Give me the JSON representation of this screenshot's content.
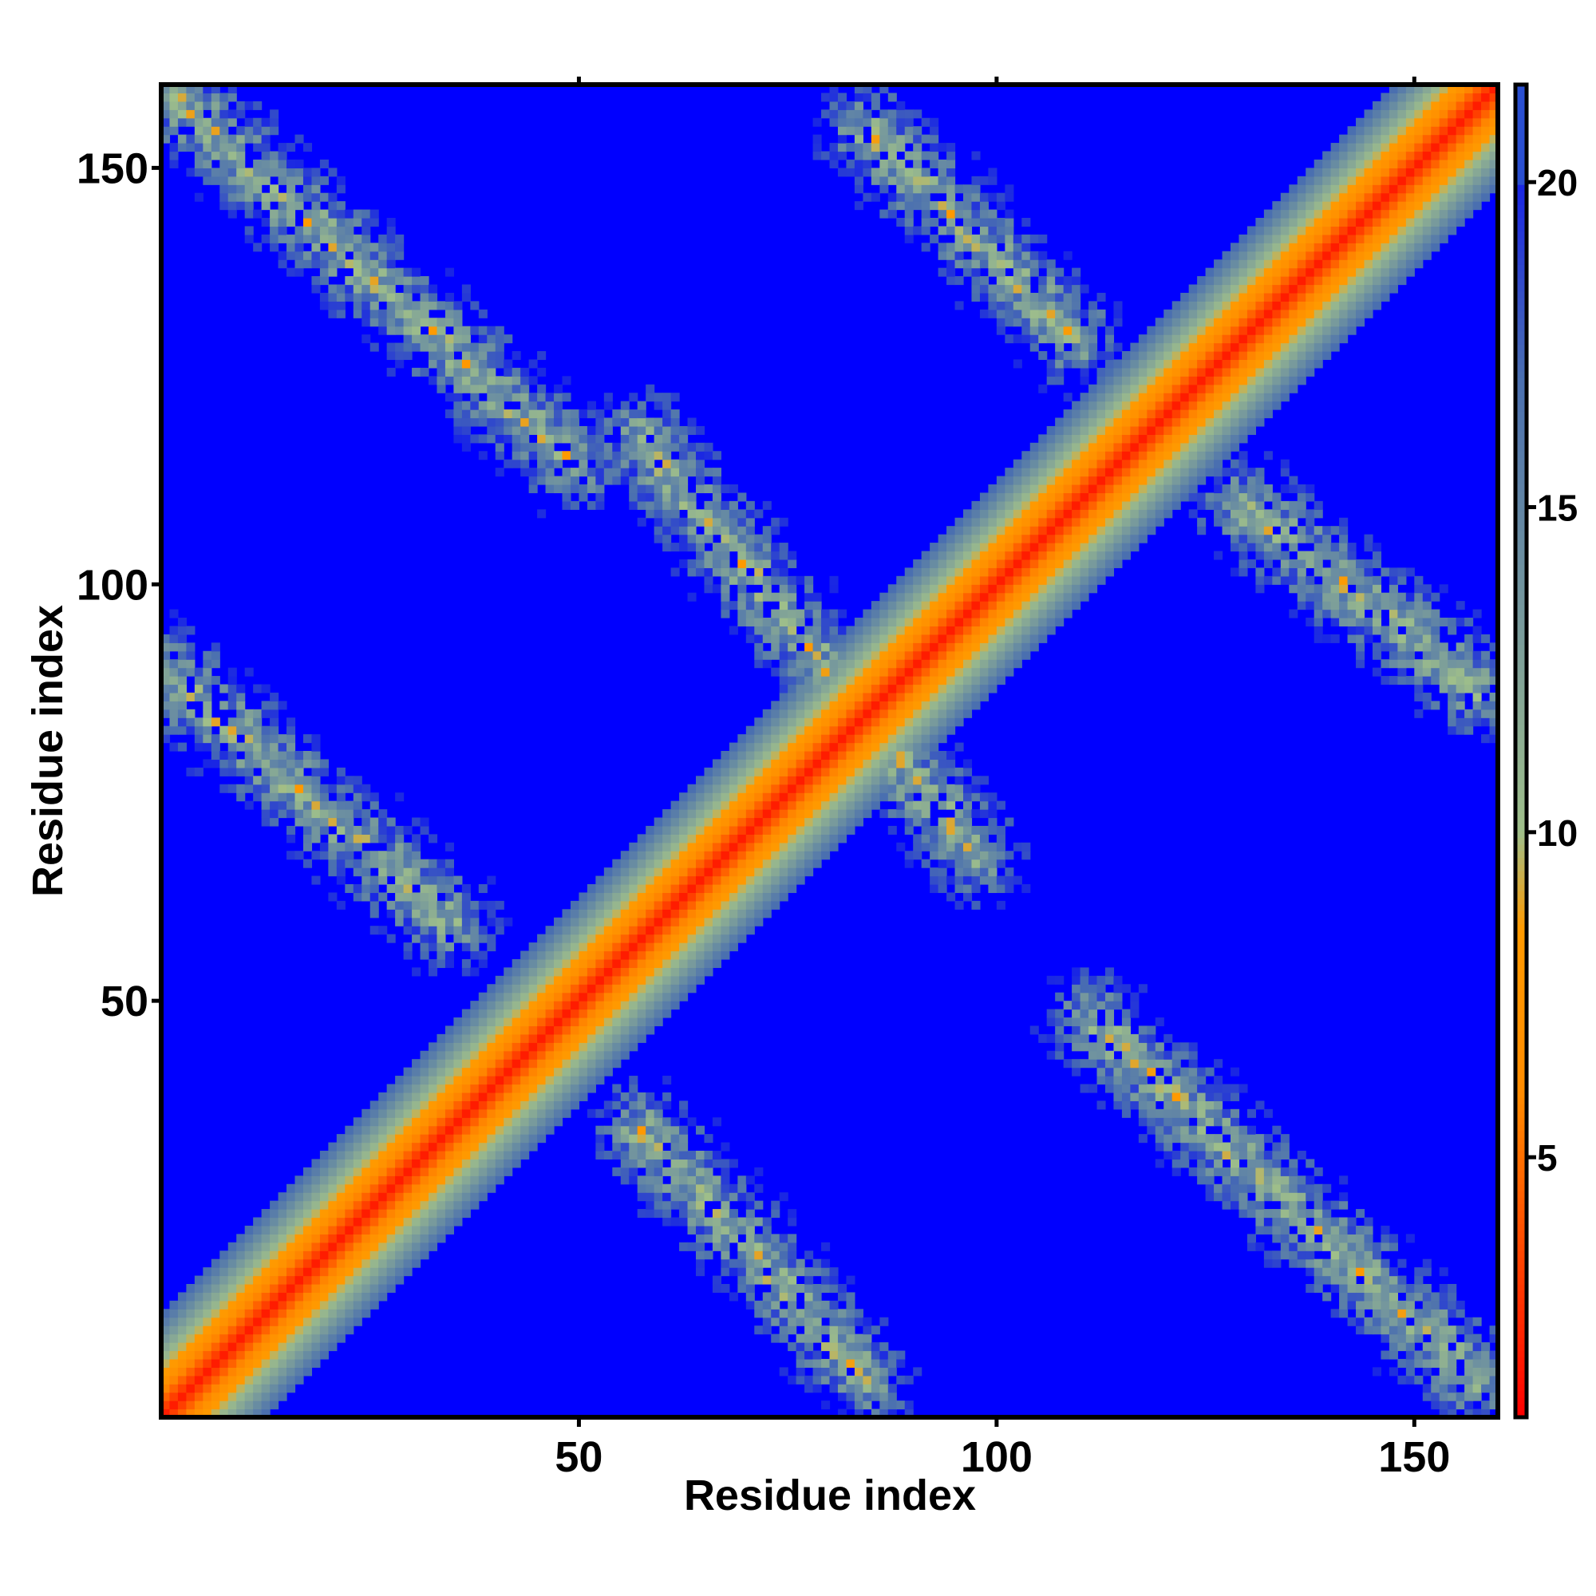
{
  "chart_data": {
    "type": "heatmap",
    "title": "",
    "xlabel": "Residue index",
    "ylabel": "Residue index",
    "xlim": [
      1,
      160
    ],
    "ylim": [
      1,
      160
    ],
    "x_ticks": [
      50,
      100,
      150
    ],
    "y_ticks": [
      50,
      100,
      150
    ],
    "x_tick_labels": [
      "50",
      "100",
      "150"
    ],
    "y_tick_labels": [
      "50",
      "100",
      "150"
    ],
    "colorbar": {
      "ticks": [
        5,
        10,
        15,
        20
      ],
      "tick_labels": [
        "5",
        "10",
        "15",
        "20"
      ],
      "range": [
        1,
        21.5
      ],
      "colors": [
        "#ff0000",
        "#ff8c00",
        "#9fbf8a",
        "#4a6fb0",
        "#0000ff"
      ]
    },
    "background_value": 21,
    "diagonal": {
      "center_value": 2,
      "half_width_residues": 12
    },
    "contact_bands": [
      {
        "from": [
          1,
          160
        ],
        "to": [
          50,
          115
        ],
        "half_width": 6
      },
      {
        "from": [
          1,
          90
        ],
        "to": [
          35,
          60
        ],
        "half_width": 6
      },
      {
        "from": [
          58,
          118
        ],
        "to": [
          98,
          68
        ],
        "half_width": 6
      },
      {
        "from": [
          58,
          35
        ],
        "to": [
          85,
          5
        ],
        "half_width": 6
      },
      {
        "from": [
          112,
          48
        ],
        "to": [
          158,
          5
        ],
        "half_width": 6
      },
      {
        "from": [
          130,
          110
        ],
        "to": [
          158,
          88
        ],
        "half_width": 6
      },
      {
        "from": [
          85,
          155
        ],
        "to": [
          110,
          130
        ],
        "half_width": 6
      }
    ],
    "grid": false,
    "legend": "colorbar-right"
  }
}
